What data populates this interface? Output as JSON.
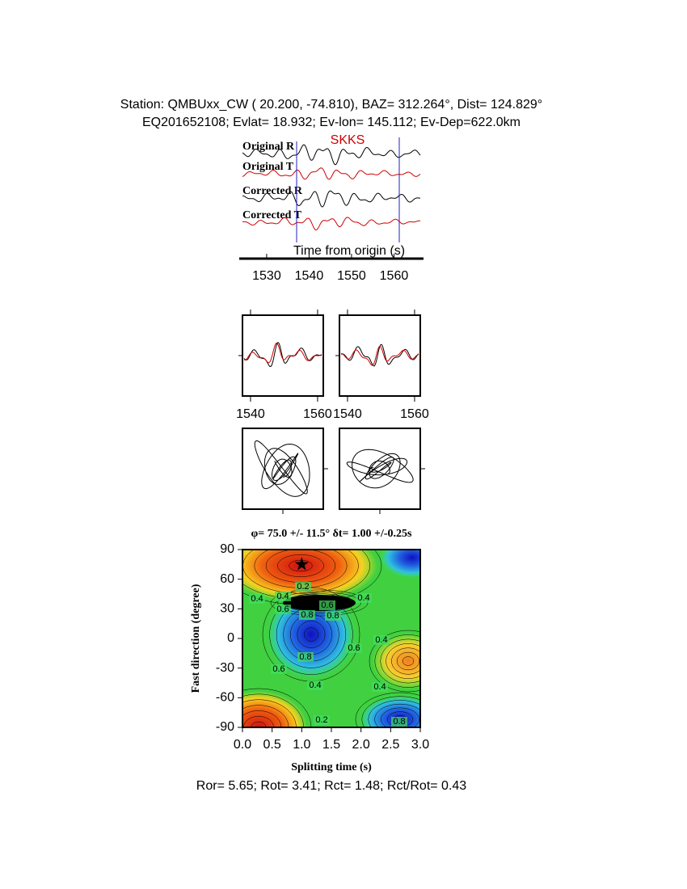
{
  "header": {
    "station": "Station: QMBUxx_CW (  20.200,  -74.810), BAZ=  312.264°, Dist=  124.829°",
    "event": "EQ201652108; Evlat=  18.932; Ev-lon= 145.112; Ev-Dep=622.0km"
  },
  "traces": {
    "labels": [
      "Original R",
      "Original T",
      "Corrected R",
      "Corrected T"
    ],
    "phase": "SKKS",
    "xlabel": "Time from origin (s)",
    "xlim": [
      1524.3,
      1566.2
    ],
    "xticks": [
      1530,
      1540,
      1550,
      1560
    ]
  },
  "waveform_panels": {
    "xlim": [
      1537.6,
      1561.7
    ],
    "xticks": [
      1540,
      1560
    ]
  },
  "grid_search": {
    "title": "φ= 75.0 +/- 11.5° δt= 1.00 +/-0.25s",
    "xlabel": "Splitting time (s)",
    "ylabel": "Fast direction (degree)",
    "xlim": [
      0,
      3
    ],
    "xticks": [
      {
        "value": 0,
        "label": "0.0"
      },
      0.5,
      {
        "value": 1,
        "label": "1.0"
      },
      1.5,
      {
        "value": 2,
        "label": "2.0"
      },
      2.5,
      {
        "value": 3,
        "label": "3.0"
      }
    ],
    "ylim": [
      -90,
      90
    ],
    "yticks": [
      90,
      60,
      30,
      0,
      -30,
      -60,
      -90
    ],
    "best": {
      "dt": 1.0,
      "phi": 75.0
    },
    "contour_labels": [
      0.2,
      0.4,
      0.6,
      0.8
    ]
  },
  "footer": "Ror= 5.65; Rot= 3.41; Rct= 1.48; Rct/Rot= 0.43"
}
